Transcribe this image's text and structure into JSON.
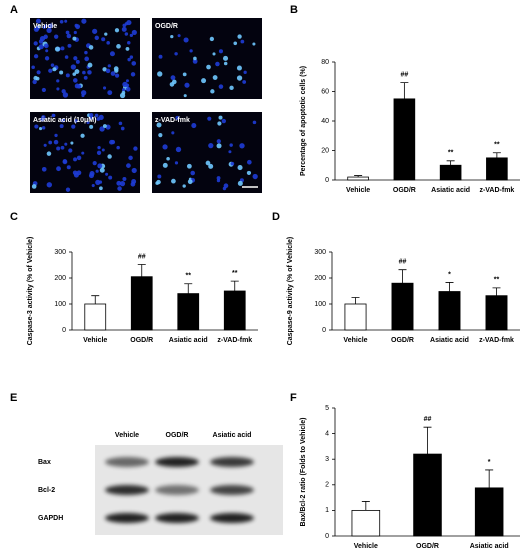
{
  "panel_a": {
    "label": "A",
    "images": [
      "Vehicle",
      "OGD/R",
      "Asiatic acid (10μM)",
      "z-VAD-fmk"
    ]
  },
  "panel_e": {
    "label": "E",
    "columns": [
      "Vehicle",
      "OGD/R",
      "Asiatic acid"
    ],
    "rows": [
      "Bax",
      "Bcl-2",
      "GAPDH"
    ]
  },
  "chart_data": [
    {
      "type": "bar",
      "panel": "B",
      "ylabel": "Percentage of apoptotic cells (%)",
      "categories": [
        "Vehicle",
        "OGD/R",
        "Asiatic acid",
        "z-VAD-fmk"
      ],
      "values": [
        2,
        55,
        10,
        15
      ],
      "errors": [
        1,
        11,
        3,
        3.5
      ],
      "annotations": [
        null,
        "##",
        "**",
        "**"
      ],
      "colors": [
        "#ffffff",
        "#000000",
        "#000000",
        "#000000"
      ],
      "ylim": [
        0,
        80
      ],
      "yticks": [
        0,
        20,
        40,
        60,
        80
      ]
    },
    {
      "type": "bar",
      "panel": "C",
      "ylabel": "Caspase-3 activity (% of Vehicle)",
      "categories": [
        "Vehicle",
        "OGD/R",
        "Asiatic acid",
        "z-VAD-fmk"
      ],
      "values": [
        100,
        205,
        140,
        150
      ],
      "errors": [
        32,
        47,
        38,
        38
      ],
      "annotations": [
        null,
        "##",
        "**",
        "**"
      ],
      "colors": [
        "#ffffff",
        "#000000",
        "#000000",
        "#000000"
      ],
      "ylim": [
        0,
        300
      ],
      "yticks": [
        0,
        100,
        200,
        300
      ]
    },
    {
      "type": "bar",
      "panel": "D",
      "ylabel": "Caspase-9 activity (% of Vehicle)",
      "categories": [
        "Vehicle",
        "OGD/R",
        "Asiatic acid",
        "z-VAD-fmk"
      ],
      "values": [
        100,
        180,
        148,
        132
      ],
      "errors": [
        25,
        52,
        35,
        30
      ],
      "annotations": [
        null,
        "##",
        "*",
        "**"
      ],
      "colors": [
        "#ffffff",
        "#000000",
        "#000000",
        "#000000"
      ],
      "ylim": [
        0,
        300
      ],
      "yticks": [
        0,
        100,
        200,
        300
      ]
    },
    {
      "type": "bar",
      "panel": "F",
      "ylabel": "Bax/Bcl-2 ratio (Folds to Vehicle)",
      "categories": [
        "Vehicle",
        "OGD/R",
        "Asiatic acid"
      ],
      "values": [
        1,
        3.2,
        1.88
      ],
      "errors": [
        0.35,
        1.05,
        0.7
      ],
      "annotations": [
        null,
        "##",
        "*"
      ],
      "colors": [
        "#ffffff",
        "#000000",
        "#000000"
      ],
      "ylim": [
        0,
        5
      ],
      "yticks": [
        0,
        1,
        2,
        3,
        4,
        5
      ]
    }
  ]
}
